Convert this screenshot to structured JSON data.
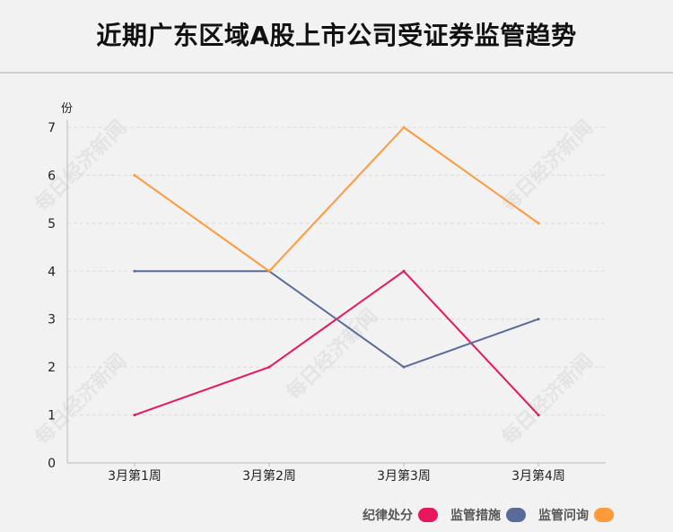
{
  "title": "近期广东区域A股上市公司受证券监管趋势",
  "watermark": "每日经济新闻",
  "chart_data": {
    "type": "line",
    "title": "近期广东区域A股上市公司受证券监管趋势",
    "ylabel": "份",
    "xlabel": "",
    "categories": [
      "3月第1周",
      "3月第2周",
      "3月第3周",
      "3月第4周"
    ],
    "yticks": [
      "0",
      "1",
      "2",
      "3",
      "4",
      "5",
      "6",
      "7"
    ],
    "ylim": [
      0,
      7
    ],
    "grid": true,
    "legend_position": "bottom-right",
    "series": [
      {
        "name": "纪律处分",
        "color": "#e8175d",
        "values": [
          1,
          2,
          4,
          1
        ]
      },
      {
        "name": "监管措施",
        "color": "#5b6b99",
        "values": [
          4,
          4,
          2,
          3
        ]
      },
      {
        "name": "监管问询",
        "color": "#ff9a3c",
        "values": [
          6,
          4,
          7,
          5
        ]
      }
    ]
  }
}
